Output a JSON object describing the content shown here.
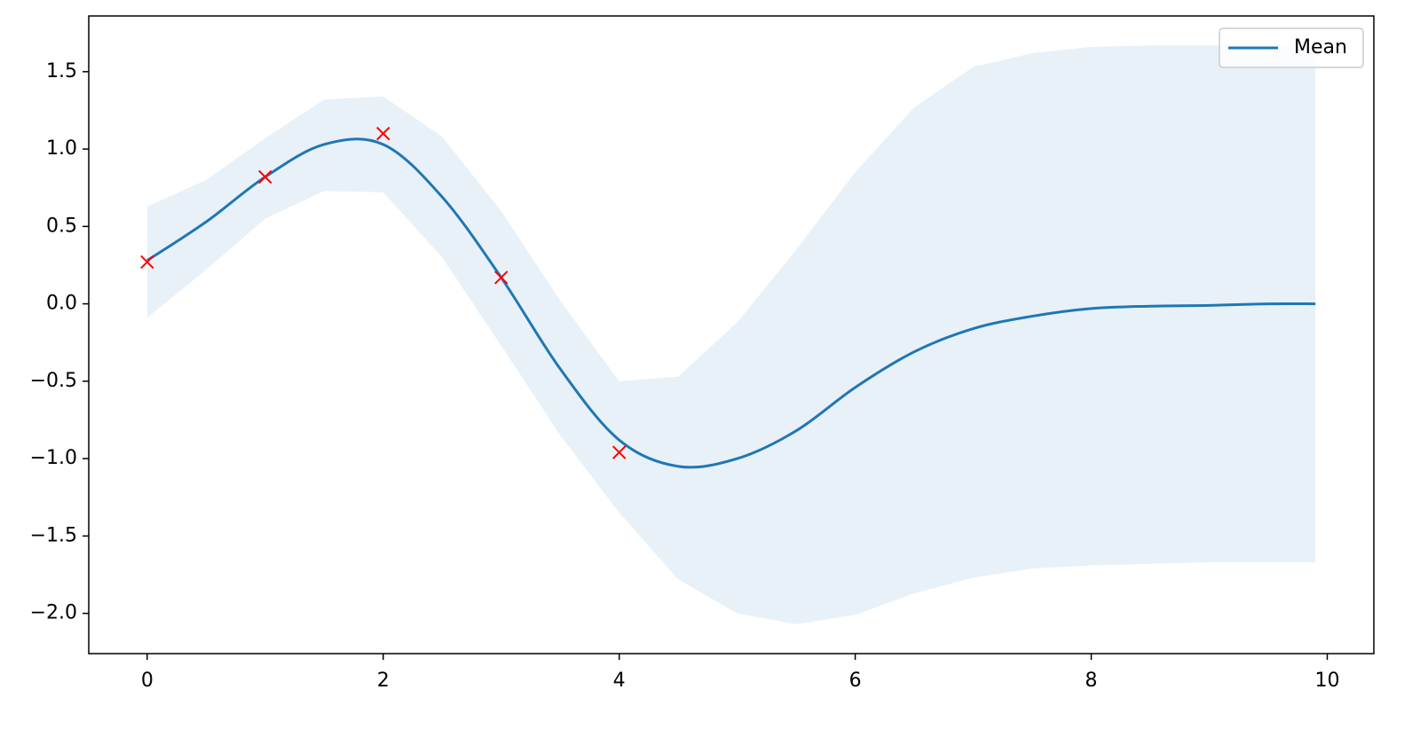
{
  "chart_data": {
    "type": "line",
    "x": [
      0,
      0.5,
      1,
      1.5,
      2,
      2.5,
      3,
      3.5,
      4,
      4.5,
      5,
      5.5,
      6,
      6.5,
      7,
      7.5,
      8,
      8.5,
      9,
      9.5,
      9.9
    ],
    "series": [
      {
        "name": "Mean",
        "color": "#1f77b4",
        "values": [
          0.28,
          0.53,
          0.82,
          1.03,
          1.03,
          0.69,
          0.17,
          -0.42,
          -0.88,
          -1.05,
          -1.0,
          -0.82,
          -0.54,
          -0.31,
          -0.16,
          -0.08,
          -0.03,
          -0.015,
          -0.01,
          0,
          0
        ]
      }
    ],
    "band": {
      "color": "#1f77b4",
      "upper": [
        0.63,
        0.8,
        1.07,
        1.32,
        1.34,
        1.08,
        0.6,
        0.02,
        -0.5,
        -0.47,
        -0.12,
        0.35,
        0.85,
        1.27,
        1.53,
        1.62,
        1.66,
        1.67,
        1.67,
        1.67,
        1.67
      ],
      "lower": [
        -0.09,
        0.22,
        0.55,
        0.73,
        0.72,
        0.3,
        -0.27,
        -0.85,
        -1.35,
        -1.78,
        -2.0,
        -2.07,
        -2.01,
        -1.87,
        -1.77,
        -1.71,
        -1.69,
        -1.68,
        -1.67,
        -1.67,
        -1.67
      ]
    },
    "points": {
      "color": "#ff0000",
      "x": [
        0,
        1,
        2,
        3,
        4
      ],
      "y": [
        0.27,
        0.82,
        1.1,
        0.17,
        -0.96
      ]
    },
    "xlim": [
      -0.495,
      10.395
    ],
    "ylim": [
      -2.26,
      1.86
    ],
    "xticks": [
      0,
      2,
      4,
      6,
      8,
      10
    ],
    "yticks": [
      {
        "value": -2.0,
        "label": "−2.0"
      },
      {
        "value": -1.5,
        "label": "−1.5"
      },
      {
        "value": -1.0,
        "label": "−1.0"
      },
      {
        "value": -0.5,
        "label": "−0.5"
      },
      {
        "value": 0.0,
        "label": "0.0"
      },
      {
        "value": 0.5,
        "label": "0.5"
      },
      {
        "value": 1.0,
        "label": "1.0"
      },
      {
        "value": 1.5,
        "label": "1.5"
      }
    ],
    "legend": "upper right"
  }
}
